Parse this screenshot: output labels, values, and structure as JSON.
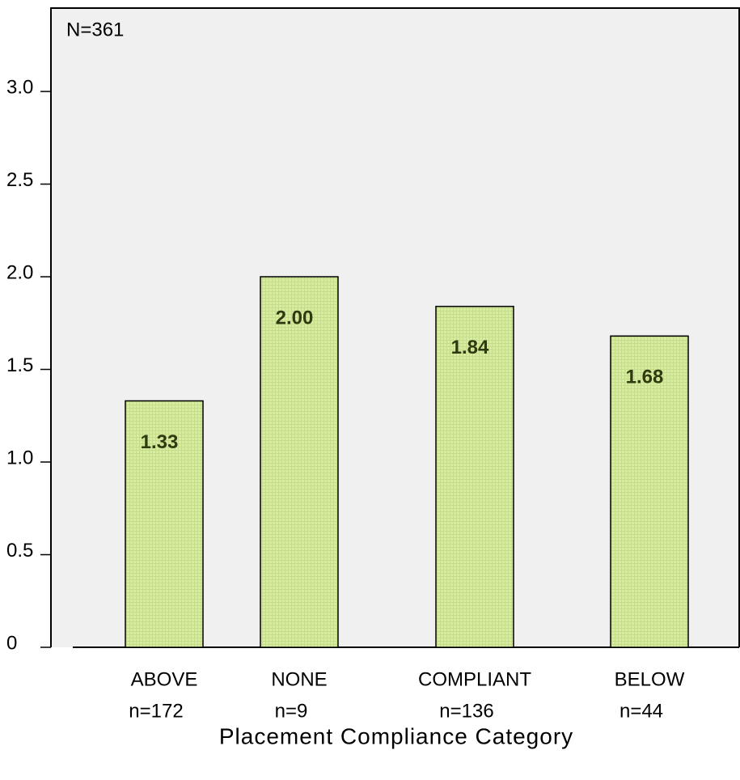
{
  "chart_data": {
    "type": "bar",
    "annotation": "N=361",
    "x_label": "Placement Compliance Category",
    "categories": [
      "ABOVE",
      "NONE",
      "COMPLIANT",
      "BELOW"
    ],
    "sublabels": [
      "n=172",
      "n=9",
      "n=136",
      "n=44"
    ],
    "values": [
      1.33,
      2,
      1.84,
      1.68
    ],
    "value_labels": [
      "1.33",
      "2.00",
      "1.84",
      "1.68"
    ],
    "color": "#d8eca4",
    "ylim": [
      0,
      3.45
    ],
    "yticks": [
      0,
      {
        "value": 0.5,
        "label": "0.5"
      },
      {
        "value": 1,
        "label": "1.0"
      },
      {
        "value": 1.5,
        "label": "1.5"
      },
      {
        "value": 2,
        "label": "2.0"
      },
      {
        "value": 2.5,
        "label": "2.5"
      },
      {
        "value": 3,
        "label": "3.0"
      }
    ]
  }
}
